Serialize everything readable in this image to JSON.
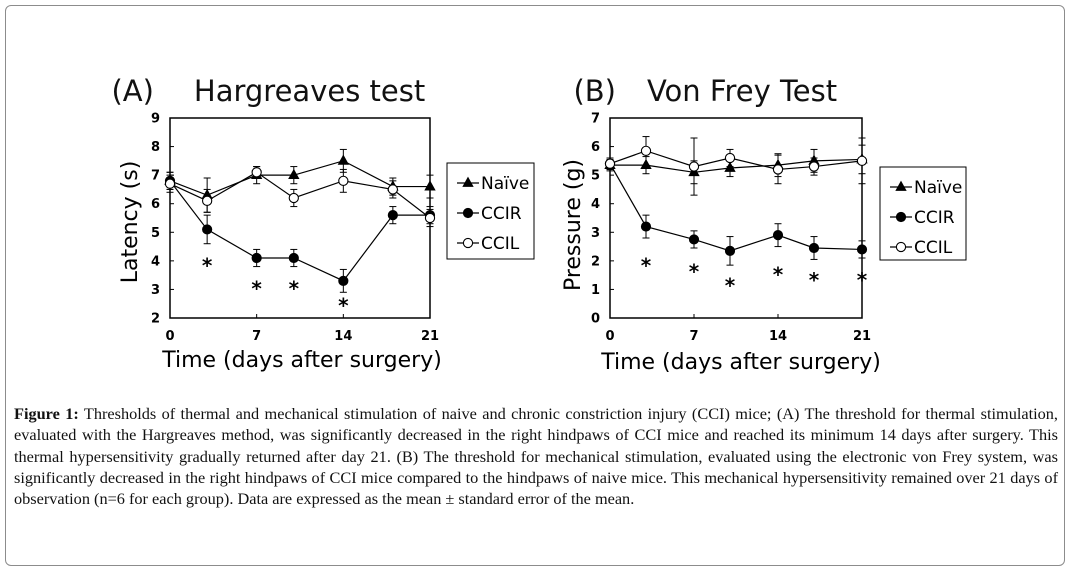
{
  "panel_titles": {
    "a_label": "(A)",
    "a_name": "Hargreaves test",
    "b_label": "(B)",
    "b_name": "Von Frey Test"
  },
  "caption": {
    "label": "Figure 1:",
    "text": "Thresholds of thermal and mechanical stimulation of naive and chronic constriction injury (CCI) mice; (A) The threshold for thermal stimulation, evaluated with the Hargreaves method, was significantly decreased in the right hindpaws of CCI mice and reached its minimum 14 days after surgery. This thermal hypersensitivity gradually returned after day 21. (B) The threshold for mechanical stimulation, evaluated using the electronic von Frey system, was significantly decreased in the right hindpaws of CCI mice compared to the hindpaws of naive mice. This mechanical hypersensitivity remained over 21 days of observation (n=6 for each group). Data are expressed as the mean ± standard error of the mean."
  },
  "chart_data": [
    {
      "type": "line",
      "title": "(A) Hargreaves test",
      "xlabel": "Time (days after surgery)",
      "ylabel": "Latency (s)",
      "xlim": [
        0,
        21
      ],
      "ylim": [
        2,
        9
      ],
      "xticks": [
        0,
        7,
        14,
        21
      ],
      "yticks": [
        2,
        3,
        4,
        5,
        6,
        7,
        8,
        9
      ],
      "legend_position": "right",
      "series": [
        {
          "name": "Naïve",
          "marker": "triangle",
          "x": [
            0,
            3,
            7,
            10,
            14,
            18,
            21
          ],
          "values": [
            6.8,
            6.3,
            7.0,
            7.0,
            7.5,
            6.6,
            6.6
          ],
          "errors": [
            0.3,
            0.6,
            0.3,
            0.3,
            0.4,
            0.3,
            0.4
          ]
        },
        {
          "name": "CCIR",
          "marker": "filled-circle",
          "x": [
            0,
            3,
            7,
            10,
            14,
            18,
            21
          ],
          "values": [
            6.8,
            5.1,
            4.1,
            4.1,
            3.3,
            5.6,
            5.6
          ],
          "errors": [
            0.3,
            0.5,
            0.3,
            0.3,
            0.4,
            0.3,
            0.3
          ]
        },
        {
          "name": "CCIL",
          "marker": "open-circle",
          "x": [
            0,
            3,
            7,
            10,
            14,
            18,
            21
          ],
          "values": [
            6.7,
            6.1,
            7.1,
            6.2,
            6.8,
            6.5,
            5.5
          ],
          "errors": [
            0.3,
            0.4,
            0.2,
            0.3,
            0.4,
            0.3,
            0.3
          ]
        }
      ],
      "significance": [
        {
          "x": 3,
          "label": "*",
          "y": 3.9
        },
        {
          "x": 7,
          "label": "*",
          "y": 3.1
        },
        {
          "x": 10,
          "label": "*",
          "y": 3.1
        },
        {
          "x": 14,
          "label": "*",
          "y": 2.5
        }
      ]
    },
    {
      "type": "line",
      "title": "(B) Von Frey Test",
      "xlabel": "Time (days after surgery)",
      "ylabel": "Pressure (g)",
      "xlim": [
        0,
        21
      ],
      "ylim": [
        0,
        7
      ],
      "xticks": [
        0,
        7,
        14,
        21
      ],
      "yticks": [
        0,
        1,
        2,
        3,
        4,
        5,
        6,
        7
      ],
      "legend_position": "right",
      "series": [
        {
          "name": "Naïve",
          "marker": "triangle",
          "x": [
            0,
            3,
            7,
            10,
            14,
            17,
            21
          ],
          "values": [
            5.35,
            5.35,
            5.1,
            5.25,
            5.35,
            5.5,
            5.55
          ],
          "errors": [
            0.2,
            0.3,
            0.4,
            0.3,
            0.4,
            0.4,
            0.5
          ]
        },
        {
          "name": "CCIR",
          "marker": "filled-circle",
          "x": [
            0,
            3,
            7,
            10,
            14,
            17,
            21
          ],
          "values": [
            5.4,
            3.2,
            2.75,
            2.35,
            2.9,
            2.45,
            2.4
          ],
          "errors": [
            0.2,
            0.4,
            0.3,
            0.5,
            0.4,
            0.4,
            0.3
          ]
        },
        {
          "name": "CCIL",
          "marker": "open-circle",
          "x": [
            0,
            3,
            7,
            10,
            14,
            17,
            21
          ],
          "values": [
            5.4,
            5.85,
            5.3,
            5.6,
            5.2,
            5.3,
            5.5
          ],
          "errors": [
            0.2,
            0.5,
            1.0,
            0.3,
            0.5,
            0.3,
            0.8
          ]
        }
      ],
      "significance": [
        {
          "x": 3,
          "label": "*",
          "y": 1.9
        },
        {
          "x": 7,
          "label": "*",
          "y": 1.7
        },
        {
          "x": 10,
          "label": "*",
          "y": 1.2
        },
        {
          "x": 14,
          "label": "*",
          "y": 1.6
        },
        {
          "x": 17,
          "label": "*",
          "y": 1.4
        },
        {
          "x": 21,
          "label": "*",
          "y": 1.4
        }
      ]
    }
  ]
}
